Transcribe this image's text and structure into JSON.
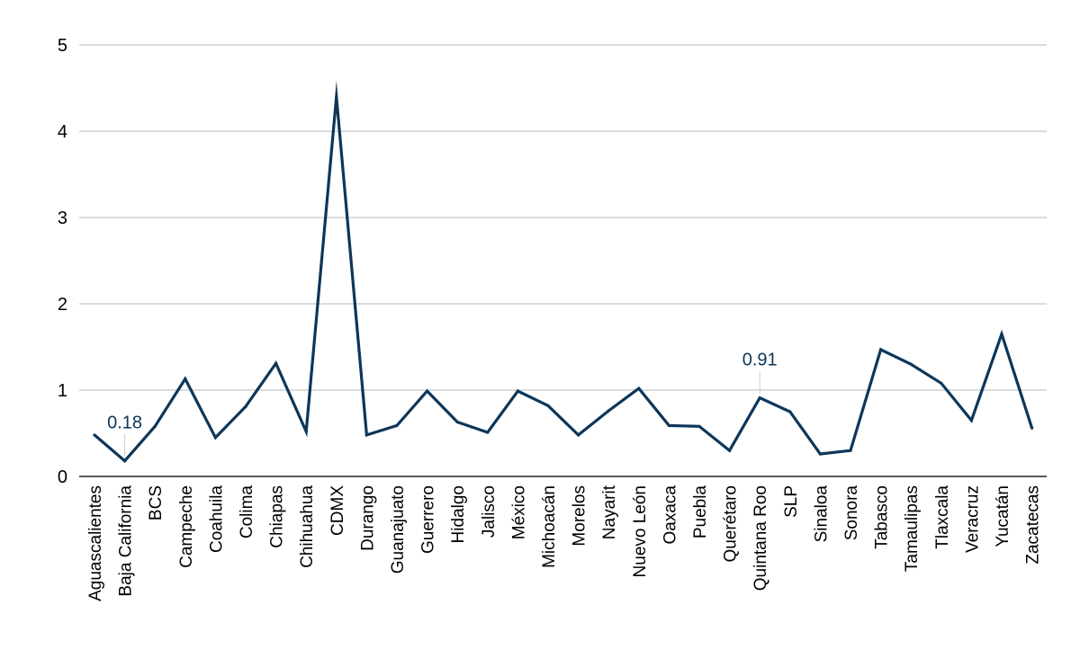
{
  "chart_data": {
    "type": "line",
    "title": "",
    "xlabel": "",
    "ylabel": "",
    "ylim": [
      0,
      5
    ],
    "yticks": [
      "0",
      "1",
      "2",
      "3",
      "4",
      "5"
    ],
    "grid": true,
    "legend": "none",
    "categories": [
      "Aguascalientes",
      "Baja California",
      "BCS",
      "Campeche",
      "Coahuila",
      "Colima",
      "Chiapas",
      "Chihuahua",
      "CDMX",
      "Durango",
      "Guanajuato",
      "Guerrero",
      "Hidalgo",
      "Jalisco",
      "México",
      "Michoacán",
      "Morelos",
      "Nayarit",
      "Nuevo León",
      "Oaxaca",
      "Puebla",
      "Querétaro",
      "Quintana Roo",
      "SLP",
      "Sinaloa",
      "Sonora",
      "Tabasco",
      "Tamaulipas",
      "Tlaxcala",
      "Veracruz",
      "Yucatán",
      "Zacatecas"
    ],
    "series": [
      {
        "values": [
          0.48,
          0.18,
          0.58,
          1.13,
          0.45,
          0.81,
          1.31,
          0.52,
          4.4,
          0.48,
          0.59,
          0.99,
          0.63,
          0.51,
          0.99,
          0.82,
          0.48,
          0.76,
          1.02,
          0.59,
          0.58,
          0.3,
          0.91,
          0.75,
          0.26,
          0.3,
          1.47,
          1.3,
          1.08,
          0.65,
          1.65,
          0.56
        ],
        "color": "#0d3659"
      }
    ],
    "data_labels": [
      {
        "index": 1,
        "text": "0.18"
      },
      {
        "index": 22,
        "text": "0.91"
      }
    ]
  },
  "colors": {
    "line": "#0d3659",
    "grid": "#c8c8c8",
    "axis": "#222222",
    "data_label": "#0d3659"
  }
}
